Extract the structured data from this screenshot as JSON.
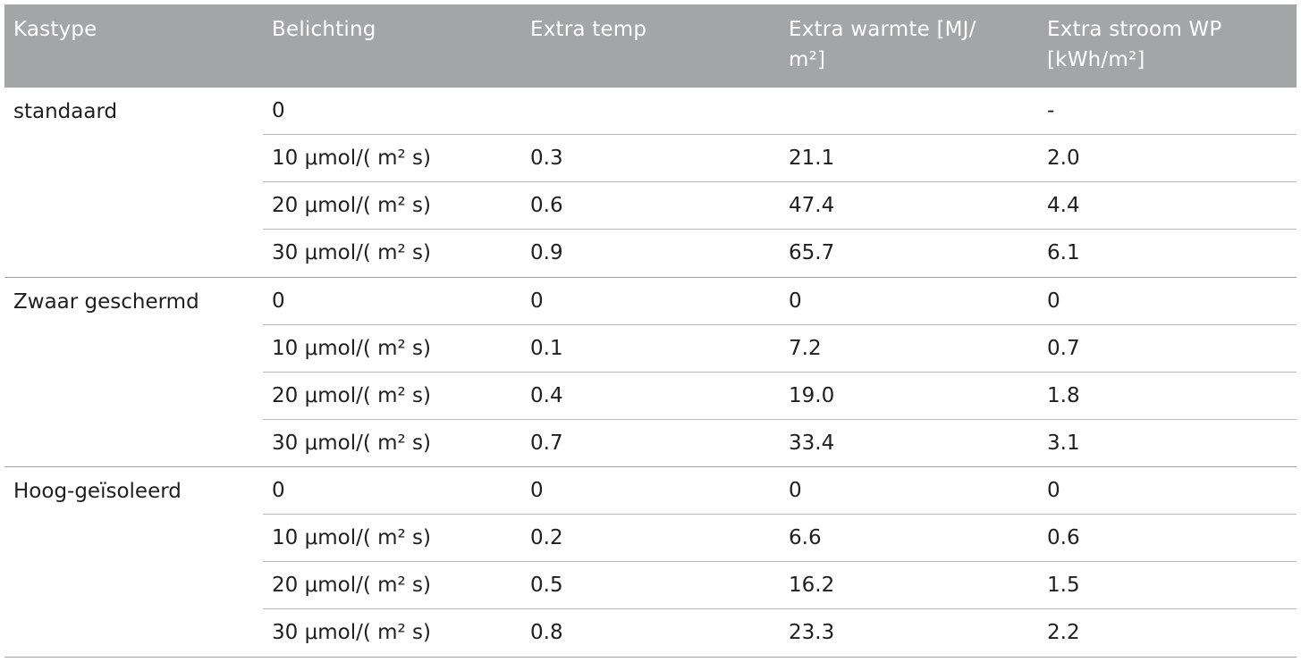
{
  "headers": [
    "Kastype",
    "Belichting",
    "Extra temp",
    "Extra warmte [MJ/ m²]",
    "Extra stroom WP [kWh/m²]"
  ],
  "header_lines": [
    [
      "Kastype"
    ],
    [
      "Belichting"
    ],
    [
      "Extra temp"
    ],
    [
      "Extra warmte [MJ/",
      "m²]"
    ],
    [
      "Extra stroom WP",
      "[kWh/m²]"
    ]
  ],
  "groups": [
    {
      "kastype": "standaard",
      "rows": [
        [
          "0",
          "",
          "",
          "-"
        ],
        [
          "10 μmol/( m² s)",
          "0.3",
          "21.1",
          "2.0"
        ],
        [
          "20 μmol/( m² s)",
          "0.6",
          "47.4",
          "4.4"
        ],
        [
          "30 μmol/( m² s)",
          "0.9",
          "65.7",
          "6.1"
        ]
      ]
    },
    {
      "kastype": "Zwaar geschermd",
      "rows": [
        [
          "0",
          "0",
          "0",
          "0"
        ],
        [
          "10 μmol/( m² s)",
          "0.1",
          "7.2",
          "0.7"
        ],
        [
          "20 μmol/( m² s)",
          "0.4",
          "19.0",
          "1.8"
        ],
        [
          "30 μmol/( m² s)",
          "0.7",
          "33.4",
          "3.1"
        ]
      ]
    },
    {
      "kastype": "Hoog-geïsoleerd",
      "rows": [
        [
          "0",
          "0",
          "0",
          "0"
        ],
        [
          "10 μmol/( m² s)",
          "0.2",
          "6.6",
          "0.6"
        ],
        [
          "20 μmol/( m² s)",
          "0.5",
          "16.2",
          "1.5"
        ],
        [
          "30 μmol/( m² s)",
          "0.8",
          "23.3",
          "2.2"
        ]
      ]
    }
  ]
}
